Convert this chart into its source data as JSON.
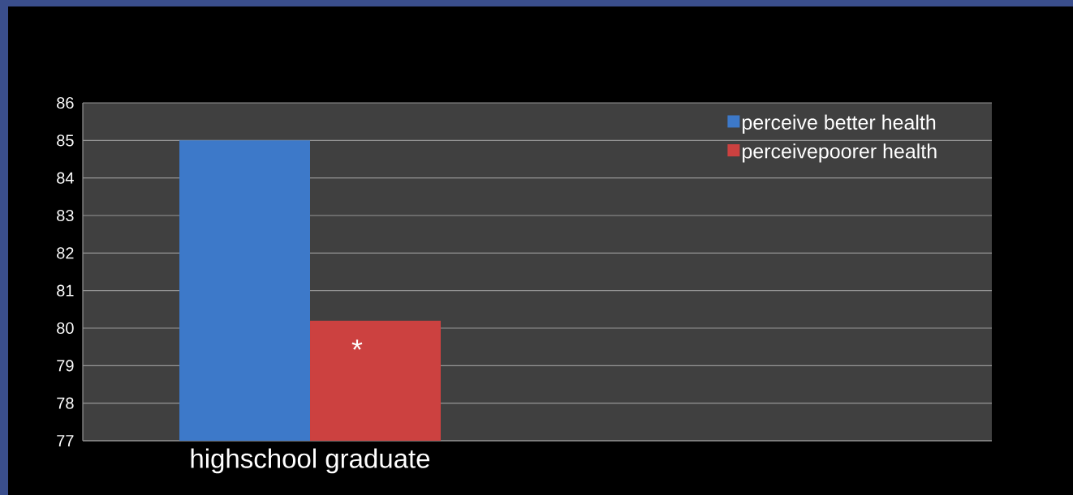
{
  "chart_data": {
    "type": "bar",
    "categories": [
      "highschool graduate",
      null
    ],
    "series": [
      {
        "name": "perceive better health",
        "color": "#3d79c9",
        "values": [
          85,
          null
        ]
      },
      {
        "name": "perceivepoorer health",
        "color": "#cc4140",
        "values": [
          80.2,
          null
        ]
      }
    ],
    "ylim": [
      77,
      86
    ],
    "yticks": [
      77,
      78,
      79,
      80,
      81,
      82,
      83,
      84,
      85,
      86
    ],
    "grid": "y",
    "legend": "top right",
    "annotations": [
      {
        "text": "*",
        "x": "highschool graduate",
        "y": 79.6
      }
    ]
  }
}
